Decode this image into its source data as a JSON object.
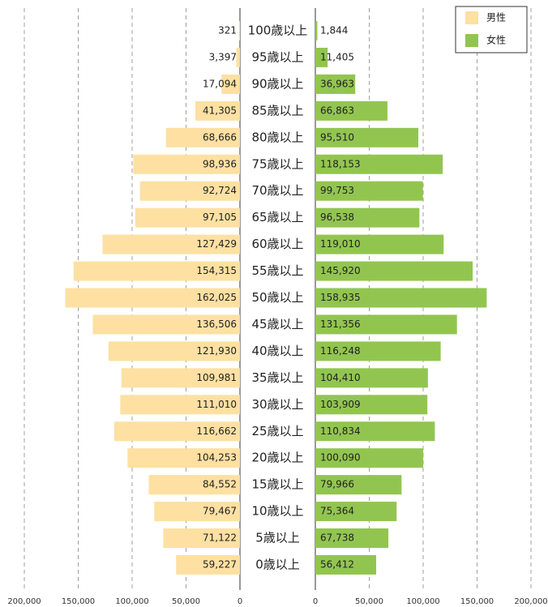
{
  "chart_data": {
    "type": "pyramid",
    "categories": [
      "100歳以上",
      "95歳以上",
      "90歳以上",
      "85歳以上",
      "80歳以上",
      "75歳以上",
      "70歳以上",
      "65歳以上",
      "60歳以上",
      "55歳以上",
      "50歳以上",
      "45歳以上",
      "40歳以上",
      "35歳以上",
      "30歳以上",
      "25歳以上",
      "20歳以上",
      "15歳以上",
      "10歳以上",
      "5歳以上",
      "0歳以上"
    ],
    "series": [
      {
        "name": "男性",
        "color": "#fde0a2",
        "values": [
          321,
          3397,
          17094,
          41305,
          68666,
          98936,
          92724,
          97105,
          127429,
          154315,
          162025,
          136506,
          121930,
          109981,
          111010,
          116662,
          104253,
          84552,
          79467,
          71122,
          59227
        ],
        "value_labels": [
          "321",
          "3,397",
          "17,094",
          "41,305",
          "68,666",
          "98,936",
          "92,724",
          "97,105",
          "127,429",
          "154,315",
          "162,025",
          "136,506",
          "121,930",
          "109,981",
          "111,010",
          "116,662",
          "104,253",
          "84,552",
          "79,467",
          "71,122",
          "59,227"
        ]
      },
      {
        "name": "女性",
        "color": "#92c550",
        "values": [
          1844,
          11405,
          36963,
          66863,
          95510,
          118153,
          99753,
          96538,
          119010,
          145920,
          158935,
          131356,
          116248,
          104410,
          103909,
          110834,
          100090,
          79966,
          75364,
          67738,
          56412
        ],
        "value_labels": [
          "1,844",
          "11,405",
          "36,963",
          "66,863",
          "95,510",
          "118,153",
          "99,753",
          "96,538",
          "119,010",
          "145,920",
          "158,935",
          "131,356",
          "116,248",
          "104,410",
          "103,909",
          "110,834",
          "100,090",
          "79,966",
          "75,364",
          "67,738",
          "56,412"
        ]
      }
    ],
    "xlim": [
      0,
      200000
    ],
    "xticks": [
      0,
      {
        "value": 50000,
        "label": "50,000"
      },
      {
        "value": 100000,
        "label": "100,000"
      },
      {
        "value": 150000,
        "label": "150,000"
      },
      {
        "value": 200000,
        "label": "200,000"
      }
    ],
    "grid": true,
    "legend": "top-right"
  }
}
